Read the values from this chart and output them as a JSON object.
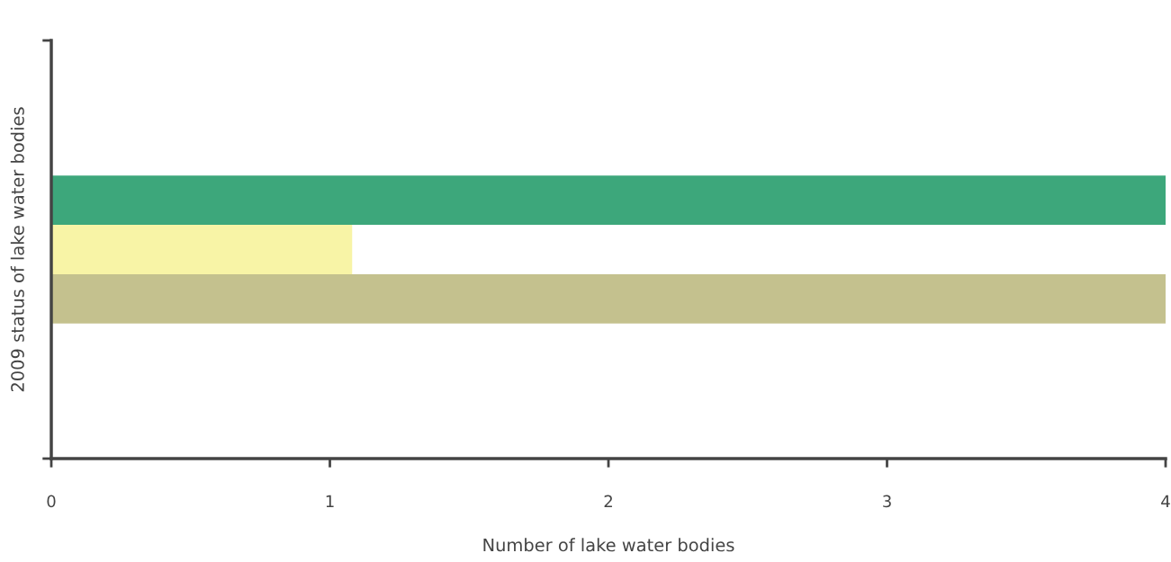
{
  "chart_data": {
    "type": "bar",
    "orientation": "horizontal",
    "categories": [
      null
    ],
    "series": [
      {
        "color": "#3da77b",
        "values": [
          4
        ]
      },
      {
        "color": "#f8f4a6",
        "values": [
          1.08
        ]
      },
      {
        "color": "#c4c18e",
        "values": [
          4
        ]
      }
    ],
    "xlabel": "Number of lake water bodies",
    "ylabel": "2009 status of lake water bodies",
    "xlim": [
      0,
      4
    ],
    "xticks": [
      0,
      1,
      2,
      3,
      4
    ],
    "tick_labels": "x",
    "grid": false,
    "legend": false
  }
}
